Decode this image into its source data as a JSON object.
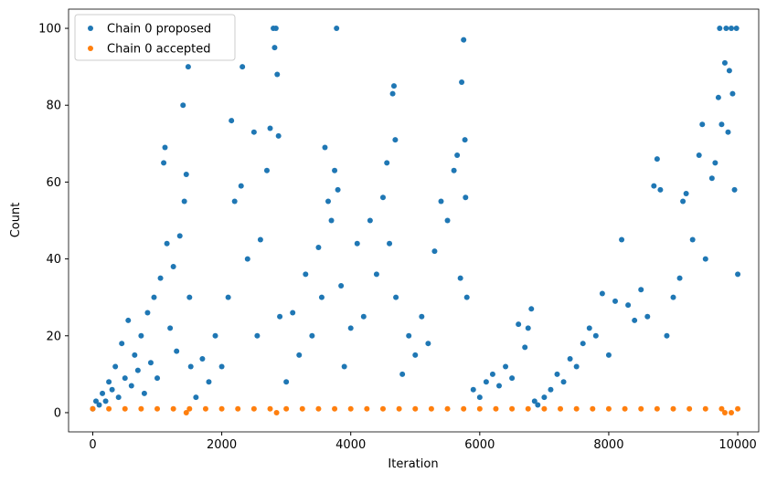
{
  "chart_data": {
    "type": "scatter",
    "xlabel": "Iteration",
    "ylabel": "Count",
    "legend": "upper left",
    "xlim": [
      -375,
      10325
    ],
    "ylim": [
      -5,
      105
    ],
    "xticks": [
      0,
      2000,
      4000,
      6000,
      8000,
      10000
    ],
    "yticks": [
      0,
      20,
      40,
      60,
      80,
      100
    ],
    "series": [
      {
        "name": "Chain 0 proposed",
        "color": "#1f77b4",
        "x": [
          0,
          50,
          100,
          150,
          200,
          250,
          300,
          350,
          400,
          450,
          500,
          550,
          600,
          650,
          700,
          750,
          800,
          850,
          900,
          950,
          1000,
          1050,
          1100,
          1120,
          1150,
          1200,
          1250,
          1300,
          1350,
          1400,
          1420,
          1450,
          1480,
          1500,
          1520,
          1600,
          1700,
          1800,
          1900,
          2000,
          2100,
          2150,
          2200,
          2300,
          2320,
          2400,
          2500,
          2550,
          2600,
          2700,
          2750,
          2800,
          2820,
          2840,
          2860,
          2880,
          2900,
          3000,
          3100,
          3200,
          3300,
          3400,
          3500,
          3550,
          3600,
          3650,
          3700,
          3750,
          3780,
          3800,
          3850,
          3900,
          4000,
          4100,
          4200,
          4300,
          4400,
          4500,
          4560,
          4600,
          4650,
          4670,
          4690,
          4700,
          4800,
          4900,
          5000,
          5100,
          5200,
          5300,
          5400,
          5500,
          5600,
          5650,
          5700,
          5720,
          5750,
          5770,
          5780,
          5800,
          5900,
          6000,
          6100,
          6200,
          6300,
          6400,
          6500,
          6600,
          6700,
          6750,
          6800,
          6850,
          6900,
          7000,
          7100,
          7200,
          7300,
          7400,
          7500,
          7600,
          7700,
          7800,
          7900,
          8000,
          8100,
          8200,
          8300,
          8400,
          8500,
          8600,
          8700,
          8750,
          8800,
          8900,
          9000,
          9100,
          9150,
          9200,
          9300,
          9400,
          9450,
          9500,
          9600,
          9650,
          9700,
          9720,
          9750,
          9800,
          9820,
          9850,
          9870,
          9900,
          9920,
          9950,
          9980,
          10000
        ],
        "values": [
          1,
          3,
          2,
          5,
          3,
          8,
          6,
          12,
          4,
          18,
          9,
          24,
          7,
          15,
          11,
          20,
          5,
          26,
          13,
          30,
          9,
          35,
          65,
          69,
          44,
          22,
          38,
          16,
          46,
          80,
          55,
          62,
          90,
          30,
          12,
          4,
          14,
          8,
          20,
          12,
          30,
          76,
          55,
          59,
          90,
          40,
          73,
          20,
          45,
          63,
          74,
          100,
          95,
          100,
          88,
          72,
          25,
          8,
          26,
          15,
          36,
          20,
          43,
          30,
          69,
          55,
          50,
          63,
          100,
          58,
          33,
          12,
          22,
          44,
          25,
          50,
          36,
          56,
          65,
          44,
          83,
          85,
          71,
          30,
          10,
          20,
          15,
          25,
          18,
          42,
          55,
          50,
          63,
          67,
          35,
          86,
          97,
          71,
          56,
          30,
          6,
          4,
          8,
          10,
          7,
          12,
          9,
          23,
          17,
          22,
          27,
          3,
          2,
          4,
          6,
          10,
          8,
          14,
          12,
          18,
          22,
          20,
          31,
          15,
          29,
          45,
          28,
          24,
          32,
          25,
          59,
          66,
          58,
          20,
          30,
          35,
          55,
          57,
          45,
          67,
          75,
          40,
          61,
          65,
          82,
          100,
          75,
          91,
          100,
          73,
          89,
          100,
          83,
          58,
          100,
          36
        ]
      },
      {
        "name": "Chain 0 accepted",
        "color": "#ff7f0e",
        "x": [
          0,
          250,
          500,
          750,
          1000,
          1250,
          1450,
          1500,
          1750,
          2000,
          2250,
          2500,
          2750,
          2850,
          3000,
          3250,
          3500,
          3750,
          4000,
          4250,
          4500,
          4750,
          5000,
          5250,
          5500,
          5750,
          6000,
          6250,
          6500,
          6750,
          7000,
          7250,
          7500,
          7750,
          8000,
          8250,
          8500,
          8750,
          9000,
          9250,
          9500,
          9750,
          9800,
          9900,
          10000
        ],
        "values": [
          1,
          1,
          1,
          1,
          1,
          1,
          0,
          1,
          1,
          1,
          1,
          1,
          1,
          0,
          1,
          1,
          1,
          1,
          1,
          1,
          1,
          1,
          1,
          1,
          1,
          1,
          1,
          1,
          1,
          1,
          1,
          1,
          1,
          1,
          1,
          1,
          1,
          1,
          1,
          1,
          1,
          1,
          0,
          0,
          1
        ]
      }
    ]
  }
}
